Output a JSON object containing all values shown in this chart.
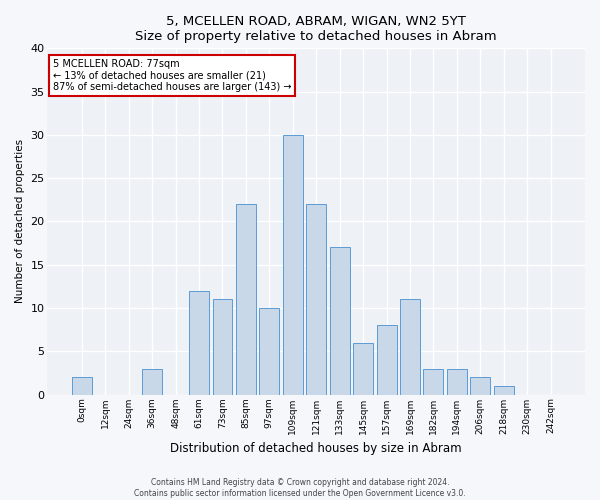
{
  "title": "5, MCELLEN ROAD, ABRAM, WIGAN, WN2 5YT",
  "subtitle": "Size of property relative to detached houses in Abram",
  "xlabel": "Distribution of detached houses by size in Abram",
  "ylabel": "Number of detached properties",
  "bar_color": "#c8d8e8",
  "bar_edge_color": "#5b9bd5",
  "background_color": "#eef2f7",
  "fig_background_color": "#f5f7fa",
  "categories": [
    "0sqm",
    "12sqm",
    "24sqm",
    "36sqm",
    "48sqm",
    "61sqm",
    "73sqm",
    "85sqm",
    "97sqm",
    "109sqm",
    "121sqm",
    "133sqm",
    "145sqm",
    "157sqm",
    "169sqm",
    "182sqm",
    "194sqm",
    "206sqm",
    "218sqm",
    "230sqm",
    "242sqm"
  ],
  "values": [
    2,
    0,
    0,
    3,
    0,
    12,
    11,
    22,
    10,
    30,
    22,
    17,
    6,
    8,
    11,
    3,
    3,
    2,
    1,
    0,
    0
  ],
  "ylim": [
    0,
    40
  ],
  "yticks": [
    0,
    5,
    10,
    15,
    20,
    25,
    30,
    35,
    40
  ],
  "annotation_title": "5 MCELLEN ROAD: 77sqm",
  "annotation_line1": "← 13% of detached houses are smaller (21)",
  "annotation_line2": "87% of semi-detached houses are larger (143) →",
  "annotation_box_color": "#ffffff",
  "annotation_box_edge": "#cc0000",
  "footer1": "Contains HM Land Registry data © Crown copyright and database right 2024.",
  "footer2": "Contains public sector information licensed under the Open Government Licence v3.0."
}
